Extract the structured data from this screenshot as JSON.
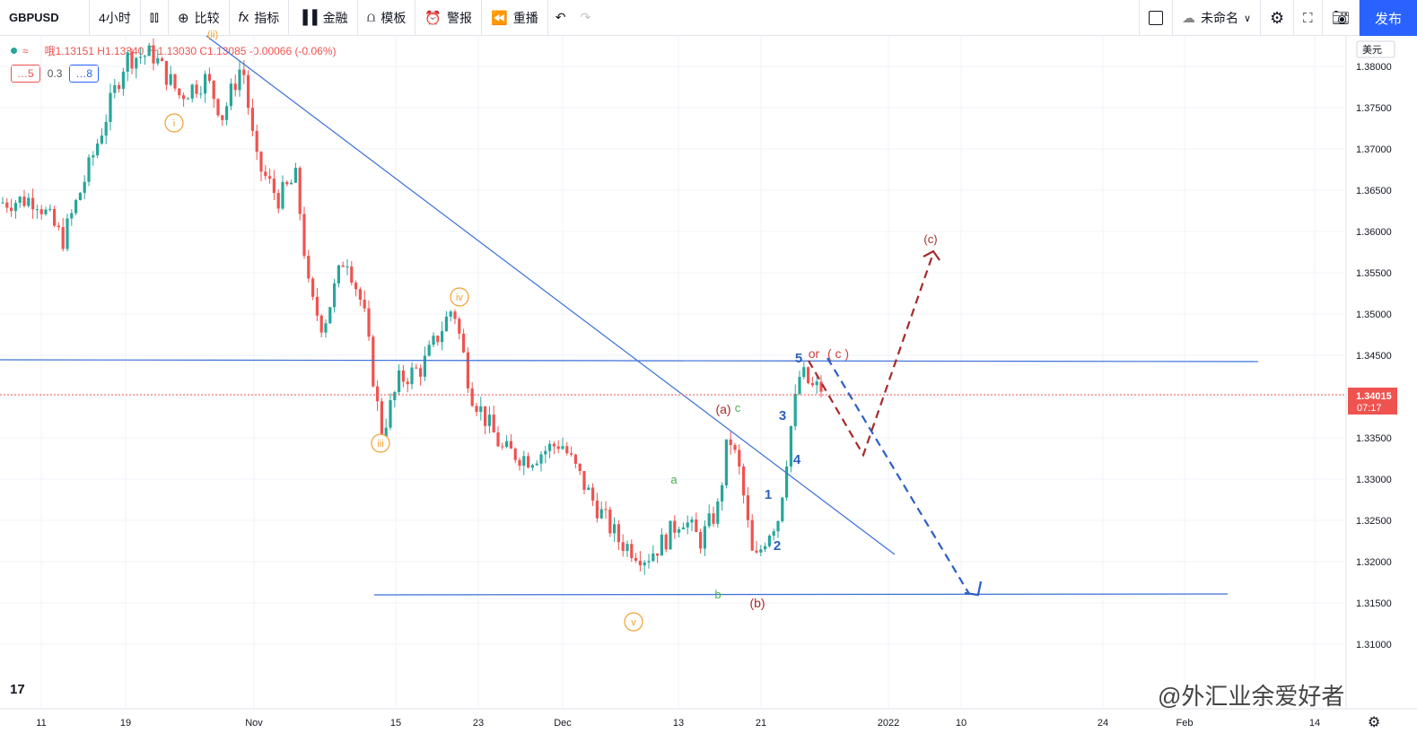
{
  "toolbar": {
    "symbol": "GBPUSD",
    "interval": "4小时",
    "compare": "比较",
    "indicators": "指标",
    "financials": "金融",
    "templates": "模板",
    "alert": "警报",
    "replay": "重播",
    "layout_name": "未命名",
    "publish": "发布"
  },
  "legend": {
    "ohlc": "哦1.13151 H1.13340 升1.13030 C1.13085 -0.00066 (-0.06%)"
  },
  "indicator_chips": {
    "a": "…5",
    "b": "0.3",
    "c": "…8"
  },
  "currency": "美元",
  "price_label": {
    "price": "1.34015",
    "countdown": "07:17"
  },
  "watermark": "@外汇业余爱好者",
  "colors": {
    "up": "#26a69a",
    "down": "#ef5350",
    "line": "#3a6fd8",
    "orange": "#f0a030",
    "darkred": "#a52a2a"
  },
  "chart_data": {
    "type": "candlestick",
    "symbol": "GBPUSD",
    "ylim": [
      1.306,
      1.383
    ],
    "y_ticks": [
      "1.38000",
      "1.37500",
      "1.37000",
      "1.36500",
      "1.36000",
      "1.35500",
      "1.35000",
      "1.34500",
      "1.34000",
      "1.33500",
      "1.33000",
      "1.32500",
      "1.32000",
      "1.31500",
      "1.31000"
    ],
    "x_ticks": [
      "11",
      "19",
      "Nov",
      "15",
      "23",
      "Dec",
      "13",
      "21",
      "2022",
      "10",
      "24",
      "Feb",
      "14"
    ],
    "last_price": 1.34015,
    "wave_labels": [
      "(ii)",
      "i",
      "iii",
      "iv",
      "v",
      "(a)",
      "c",
      "a",
      "b",
      "(b)",
      "1",
      "2",
      "3",
      "4",
      "5",
      "or",
      "( c )",
      "(c)"
    ],
    "trendlines": [
      {
        "from": [
          1.3835
        ],
        "to": [
          1.3208
        ],
        "kind": "descending trendline"
      },
      {
        "level": 1.3443,
        "kind": "horizontal resistance"
      },
      {
        "level": 1.3162,
        "kind": "horizontal support"
      }
    ],
    "projections": [
      {
        "kind": "red dashed",
        "points": [
          1.3445,
          1.3328,
          1.3578
        ]
      },
      {
        "kind": "blue dashed",
        "points": [
          1.3445,
          1.3162
        ]
      }
    ],
    "key_prices": [
      {
        "label": "i",
        "value": 1.3745
      },
      {
        "label": "iii",
        "value": 1.3355
      },
      {
        "label": "iv",
        "value": 1.351
      },
      {
        "label": "v",
        "value": 1.3162
      },
      {
        "label": "(a)",
        "value": 1.337
      },
      {
        "label": "(b)",
        "value": 1.317
      },
      {
        "label": "5",
        "value": 1.344
      }
    ]
  }
}
